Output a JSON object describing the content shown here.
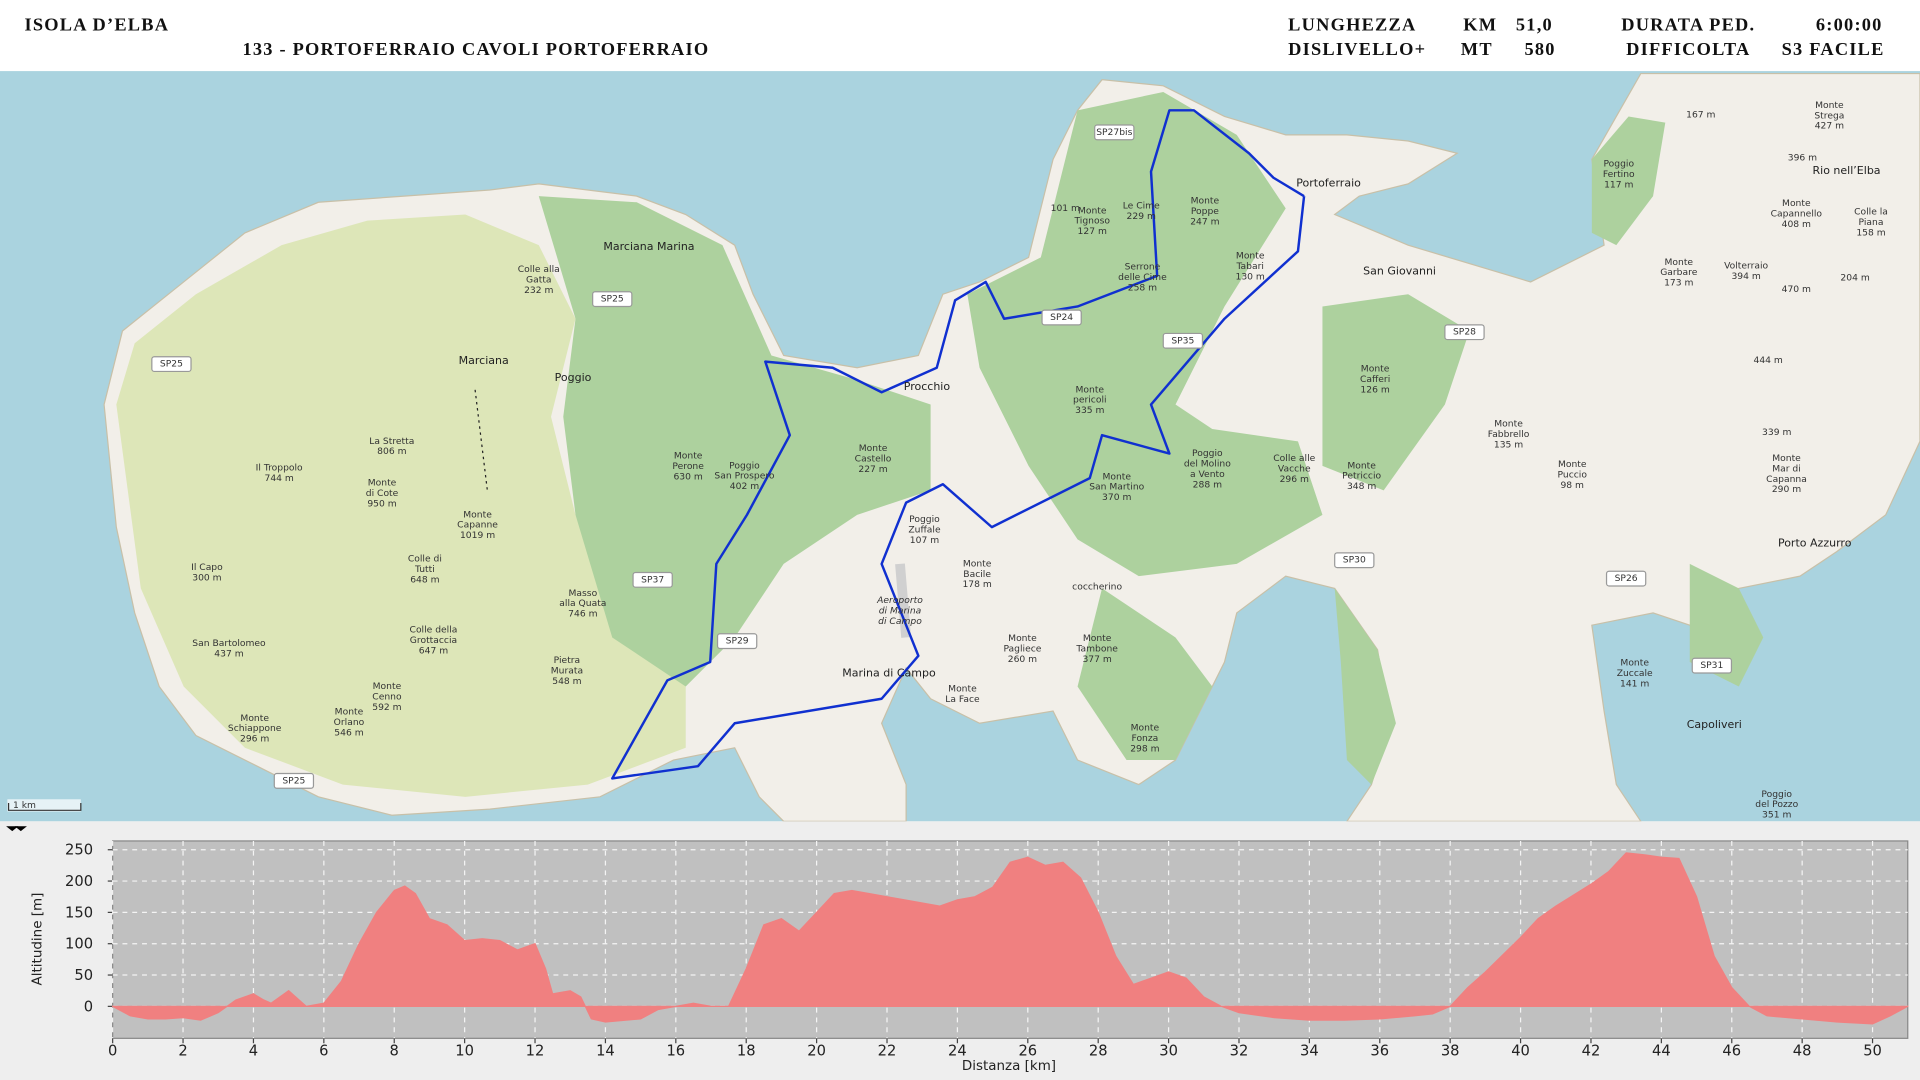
{
  "header": {
    "title": "ISOLA D’ELBA",
    "subtitle": "133 - PORTOFERRAIO CAVOLI PORTOFERRAIO",
    "stats": [
      [
        "LUNGHEZZA",
        "KM",
        "51,0"
      ],
      [
        "DISLIVELLO+",
        "MT",
        "580"
      ]
    ],
    "extra": [
      [
        "DURATA PED.",
        "6:00:00"
      ],
      [
        "DIFFICOLTA",
        "S3 FACILE"
      ]
    ]
  },
  "map": {
    "labels": [
      [
        "Colle alla",
        "Gatta",
        "232 m"
      ],
      [
        "Marciana Marina"
      ],
      [
        "Marciana"
      ],
      [
        "Poggio"
      ],
      [
        "La Stretta",
        "806 m"
      ],
      [
        "Il Troppolo",
        "744 m"
      ],
      [
        "Monte",
        "di Cote",
        "950 m"
      ],
      [
        "Monte",
        "Capanne",
        "1019 m"
      ],
      [
        "Monte",
        "Perone",
        "630 m"
      ],
      [
        "Poggio",
        "San Prospero",
        "402 m"
      ],
      [
        "Monte",
        "Castello",
        "227 m"
      ],
      [
        "Colle di",
        "Tutti",
        "648 m"
      ],
      [
        "Il Capo",
        "300 m"
      ],
      [
        "Masso",
        "alla Quata",
        "746 m"
      ],
      [
        "Colle della",
        "Grottaccia",
        "647 m"
      ],
      [
        "San Bartolomeo",
        "437 m"
      ],
      [
        "Pietra",
        "Murata",
        "548 m"
      ],
      [
        "Monte",
        "Cenno",
        "592 m"
      ],
      [
        "Monte",
        "Orlano",
        "546 m"
      ],
      [
        "Monte",
        "Schiappone",
        "296 m"
      ],
      [
        "Procchio"
      ],
      [
        "Poggio",
        "Zuffale",
        "107 m"
      ],
      [
        "Monte",
        "Bacile",
        "178 m"
      ],
      [
        "Aeroporto",
        "di Marina",
        "di Campo"
      ],
      [
        "Marina di Campo"
      ],
      [
        "Monte",
        "Pagliece",
        "260 m"
      ],
      [
        "Monte",
        "Tambone",
        "377 m"
      ],
      [
        "Monte",
        "La Face"
      ],
      [
        "coccherino"
      ],
      [
        "Monte",
        "Fonza",
        "298 m"
      ],
      [
        "Monte",
        "pericoli",
        "335 m"
      ],
      [
        "Monte",
        "San Martino",
        "370 m"
      ],
      [
        "Poggio",
        "del Molino",
        "a Vento",
        "288 m"
      ],
      [
        "Colle alle",
        "Vacche",
        "296 m"
      ],
      [
        "Monte",
        "Petriccio",
        "348 m"
      ],
      [
        "Monte",
        "Cafferi",
        "126 m"
      ],
      [
        "Le Cime",
        "229 m"
      ],
      [
        "Monte",
        "Tignoso",
        "127 m"
      ],
      [
        "Serrone",
        "delle Cime",
        "258 m"
      ],
      [
        "Monte",
        "Poppe",
        "247 m"
      ],
      [
        "Monte",
        "Tabari",
        "130 m"
      ],
      [
        "Portoferraio"
      ],
      [
        "San Giovanni"
      ],
      [
        "101 m"
      ],
      [
        "Monte",
        "Fabbrello",
        "135 m"
      ],
      [
        "Monte",
        "Puccio",
        "98 m"
      ],
      [
        "Monte",
        "Garbare",
        "173 m"
      ],
      [
        "Volterraio",
        "394 m"
      ],
      [
        "470 m"
      ],
      [
        "444 m"
      ],
      [
        "339 m"
      ],
      [
        "Monte",
        "Mar di",
        "Capanna",
        "290 m"
      ],
      [
        "Porto Azzurro"
      ],
      [
        "Monte",
        "Zuccale",
        "141 m"
      ],
      [
        "Capoliveri"
      ],
      [
        "Poggio",
        "del Pozzo",
        "351 m"
      ],
      [
        "Poggio",
        "Fertino",
        "117 m"
      ],
      [
        "167 m"
      ],
      [
        "Monte",
        "Strega",
        "427 m"
      ],
      [
        "396 m"
      ],
      [
        "Rio nell’Elba"
      ],
      [
        "Monte",
        "Capannello",
        "408 m"
      ],
      [
        "Colle la",
        "Piana",
        "158 m"
      ],
      [
        "204 m"
      ]
    ],
    "roads": [
      "SP27bis",
      "SP25",
      "SP25",
      "SP24",
      "SP35",
      "SP28",
      "SP37",
      "SP29",
      "SP30",
      "SP26",
      "SP31",
      "SP25"
    ],
    "scale": "1 km"
  },
  "chart_data": {
    "type": "area",
    "color": "#f08080",
    "grid": true,
    "xlabel": "Distanza [km]",
    "ylabel": "Altitudine [m]",
    "x": [
      0,
      0.5,
      1,
      1.5,
      2,
      2.5,
      3,
      3.5,
      4,
      4.3,
      4.5,
      5,
      5.3,
      5.5,
      6,
      6.5,
      7,
      7.5,
      8,
      8.3,
      8.6,
      9,
      9.5,
      10,
      10.5,
      11,
      11.5,
      12,
      12.3,
      12.5,
      13,
      13.3,
      13.6,
      14,
      15,
      15.5,
      16,
      16.5,
      17,
      17.5,
      18,
      18.5,
      19,
      19.5,
      20,
      20.5,
      21,
      21.5,
      22,
      22.5,
      23,
      23.5,
      24,
      24.5,
      25,
      25.5,
      26,
      26.5,
      27,
      27.5,
      28,
      28.5,
      29,
      29.5,
      30,
      30.5,
      31,
      31.5,
      32,
      33,
      34,
      35,
      36,
      37,
      37.5,
      38,
      38.5,
      39,
      40,
      40.5,
      41,
      42,
      42.5,
      43,
      43.5,
      44,
      44.5,
      45,
      45.5,
      46,
      46.5,
      47,
      48,
      49,
      50,
      50.5,
      51
    ],
    "values": [
      0,
      -15,
      -20,
      -20,
      -18,
      -22,
      -10,
      10,
      20,
      10,
      5,
      25,
      10,
      0,
      5,
      40,
      100,
      150,
      185,
      192,
      180,
      140,
      130,
      105,
      108,
      105,
      90,
      100,
      60,
      20,
      25,
      15,
      -20,
      -25,
      -20,
      -5,
      0,
      5,
      0,
      0,
      60,
      130,
      140,
      120,
      150,
      180,
      185,
      180,
      175,
      170,
      165,
      160,
      170,
      175,
      190,
      230,
      238,
      225,
      230,
      205,
      150,
      80,
      35,
      45,
      55,
      45,
      15,
      0,
      -10,
      -18,
      -22,
      -22,
      -20,
      -15,
      -12,
      0,
      30,
      55,
      110,
      140,
      160,
      195,
      215,
      245,
      242,
      238,
      236,
      175,
      80,
      30,
      0,
      -15,
      -20,
      -25,
      -28,
      -15,
      0
    ],
    "xlim": [
      0,
      51
    ],
    "ylim": [
      -51,
      264
    ],
    "xticks": [
      0,
      2,
      4,
      6,
      8,
      10,
      12,
      14,
      16,
      18,
      20,
      22,
      24,
      26,
      28,
      30,
      32,
      34,
      36,
      38,
      40,
      42,
      44,
      46,
      48,
      50
    ],
    "yticks": [
      0,
      50,
      100,
      150,
      200,
      250
    ]
  }
}
